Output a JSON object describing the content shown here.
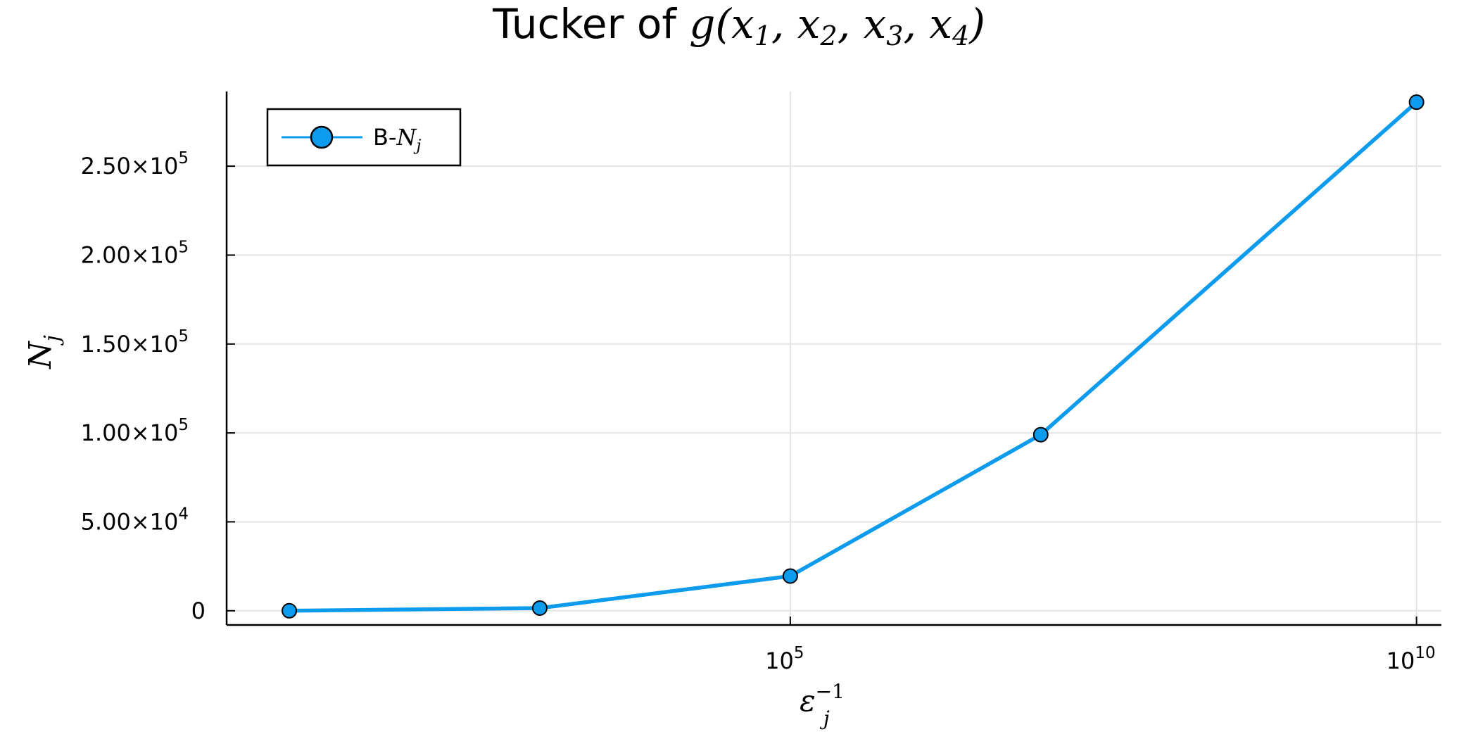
{
  "chart_data": {
    "type": "line",
    "title": {
      "text": "Tucker of ",
      "math": {
        "fn": "g",
        "open": "(",
        "args": [
          "1",
          "2",
          "3",
          "4"
        ],
        "var": "x",
        "sep": ", ",
        "close": ")"
      }
    },
    "xlabel": {
      "base": "ε",
      "sub": "j",
      "sup": "−1"
    },
    "ylabel": {
      "base": "N",
      "sub": "j"
    },
    "x_scale": "log10",
    "xlim": [
      3.16,
      15800000000.0
    ],
    "ylim": [
      -8000,
      292000
    ],
    "grid": true,
    "legend": {
      "position": "top-left"
    },
    "x_ticks": [
      {
        "value": 100000,
        "base": "10",
        "exp": "5"
      },
      {
        "value": 10000000000,
        "base": "10",
        "exp": "10"
      }
    ],
    "y_ticks": [
      {
        "value": 0,
        "mant": "0",
        "exp": ""
      },
      {
        "value": 50000,
        "mant": "5.00×10",
        "exp": "4"
      },
      {
        "value": 100000,
        "mant": "1.00×10",
        "exp": "5"
      },
      {
        "value": 150000,
        "mant": "1.50×10",
        "exp": "5"
      },
      {
        "value": 200000,
        "mant": "2.00×10",
        "exp": "5"
      },
      {
        "value": 250000,
        "mant": "2.50×10",
        "exp": "5"
      }
    ],
    "series": [
      {
        "name": {
          "prefix": "B-",
          "base": "N",
          "sub": "j"
        },
        "color": "#0d9bed",
        "x": [
          10,
          1000,
          100000,
          10000000,
          10000000000
        ],
        "y": [
          0,
          1500,
          19500,
          99000,
          286000
        ]
      }
    ]
  }
}
